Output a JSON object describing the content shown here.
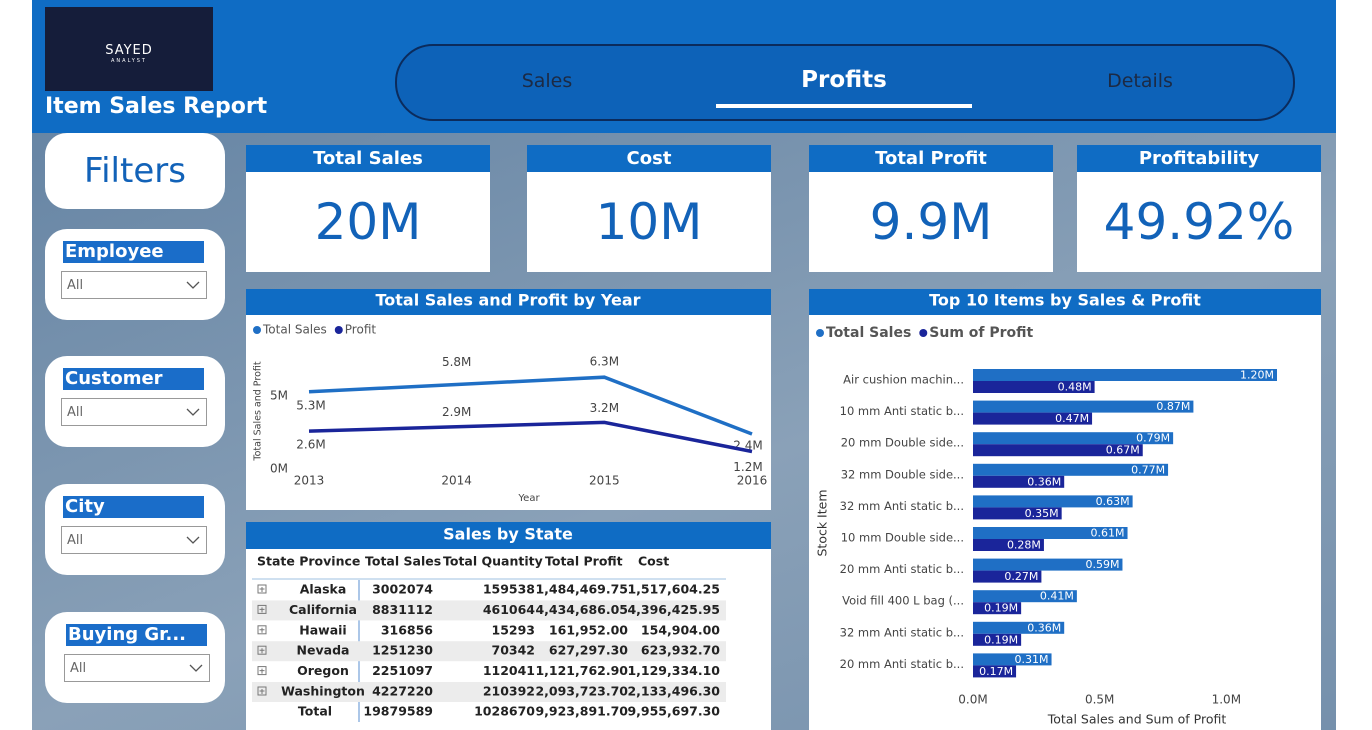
{
  "header": {
    "logo": "SAYED",
    "logo_sub": "ANALYST",
    "title": "Item Sales Report"
  },
  "tabs": [
    "Sales",
    "Profits",
    "Details"
  ],
  "filters": {
    "title": "Filters",
    "slicers": [
      {
        "label": "Employee",
        "value": "All"
      },
      {
        "label": "Customer",
        "value": "All"
      },
      {
        "label": "City",
        "value": "All"
      },
      {
        "label": "Buying Gr...",
        "value": "All"
      }
    ]
  },
  "kpis": [
    {
      "title": "Total Sales",
      "value": "20M"
    },
    {
      "title": "Cost",
      "value": "10M"
    },
    {
      "title": "Total Profit",
      "value": "9.9M"
    },
    {
      "title": "Profitability",
      "value": "49.92%"
    }
  ],
  "table": {
    "title": "Sales by State",
    "columns": [
      "State Province",
      "Total Sales",
      "Total Quantity",
      "Total Profit",
      "Cost"
    ],
    "rows": [
      [
        "Alaska",
        "3002074",
        "159538",
        "1,484,469.75",
        "1,517,604.25"
      ],
      [
        "California",
        "8831112",
        "461064",
        "4,434,686.05",
        "4,396,425.95"
      ],
      [
        "Hawaii",
        "316856",
        "15293",
        "161,952.00",
        "154,904.00"
      ],
      [
        "Nevada",
        "1251230",
        "70342",
        "627,297.30",
        "623,932.70"
      ],
      [
        "Oregon",
        "2251097",
        "112041",
        "1,121,762.90",
        "1,129,334.10"
      ],
      [
        "Washington",
        "4227220",
        "210392",
        "2,093,723.70",
        "2,133,496.30"
      ]
    ],
    "total": [
      "Total",
      "19879589",
      "1028670",
      "9,923,891.70",
      "9,955,697.30"
    ]
  },
  "chart_data": [
    {
      "type": "line",
      "title": "Total Sales and Profit by Year",
      "x": [
        2013,
        2014,
        2015,
        2016
      ],
      "xlim": [
        2013,
        2016
      ],
      "xticks": [
        2013,
        2014,
        2015,
        2016
      ],
      "ylim": [
        0,
        7
      ],
      "yticks": [
        {
          "value": 0,
          "label": "0M"
        },
        {
          "value": 5,
          "label": "5M"
        }
      ],
      "xlabel": "Year",
      "ylabel": "Total Sales and Profit",
      "series": [
        {
          "name": "Total Sales",
          "color": "#1f6fc5",
          "values": [
            5.3,
            5.8,
            6.3,
            2.4
          ],
          "value_labels": [
            "5.3M",
            "5.8M",
            "6.3M",
            "2.4M"
          ]
        },
        {
          "name": "Profit",
          "color": "#1a259a",
          "values": [
            2.6,
            2.9,
            3.2,
            1.2
          ],
          "value_labels": [
            "2.6M",
            "2.9M",
            "3.2M",
            "1.2M"
          ]
        }
      ]
    },
    {
      "type": "bar",
      "orientation": "horizontal",
      "title": "Top 10 Items by Sales & Profit",
      "categories": [
        "Air cushion machin...",
        "10 mm Anti static b...",
        "20 mm Double side...",
        "32 mm Double side...",
        "32 mm Anti static b...",
        "10 mm Double side...",
        "20 mm Anti static b...",
        "Void fill 400 L bag (...",
        "32 mm Anti static b...",
        "20 mm Anti static b..."
      ],
      "xlim": [
        0,
        1.2
      ],
      "xticks": [
        {
          "value": 0,
          "label": "0.0M"
        },
        {
          "value": 0.5,
          "label": "0.5M"
        },
        {
          "value": 1,
          "label": "1.0M"
        }
      ],
      "xlabel": "Total Sales and Sum of Profit",
      "ylabel": "Stock Item",
      "series": [
        {
          "name": "Total Sales",
          "color": "#1f6fc5",
          "values": [
            1.2,
            0.87,
            0.79,
            0.77,
            0.63,
            0.61,
            0.59,
            0.41,
            0.36,
            0.31
          ],
          "value_labels": [
            "1.20M",
            "0.87M",
            "0.79M",
            "0.77M",
            "0.63M",
            "0.61M",
            "0.59M",
            "0.41M",
            "0.36M",
            "0.31M"
          ]
        },
        {
          "name": "Sum of Profit",
          "color": "#1a259a",
          "values": [
            0.48,
            0.47,
            0.67,
            0.36,
            0.35,
            0.28,
            0.27,
            0.19,
            0.19,
            0.17
          ],
          "value_labels": [
            "0.48M",
            "0.47M",
            "0.67M",
            "0.36M",
            "0.35M",
            "0.28M",
            "0.27M",
            "0.19M",
            "0.19M",
            "0.17M"
          ]
        }
      ]
    }
  ]
}
